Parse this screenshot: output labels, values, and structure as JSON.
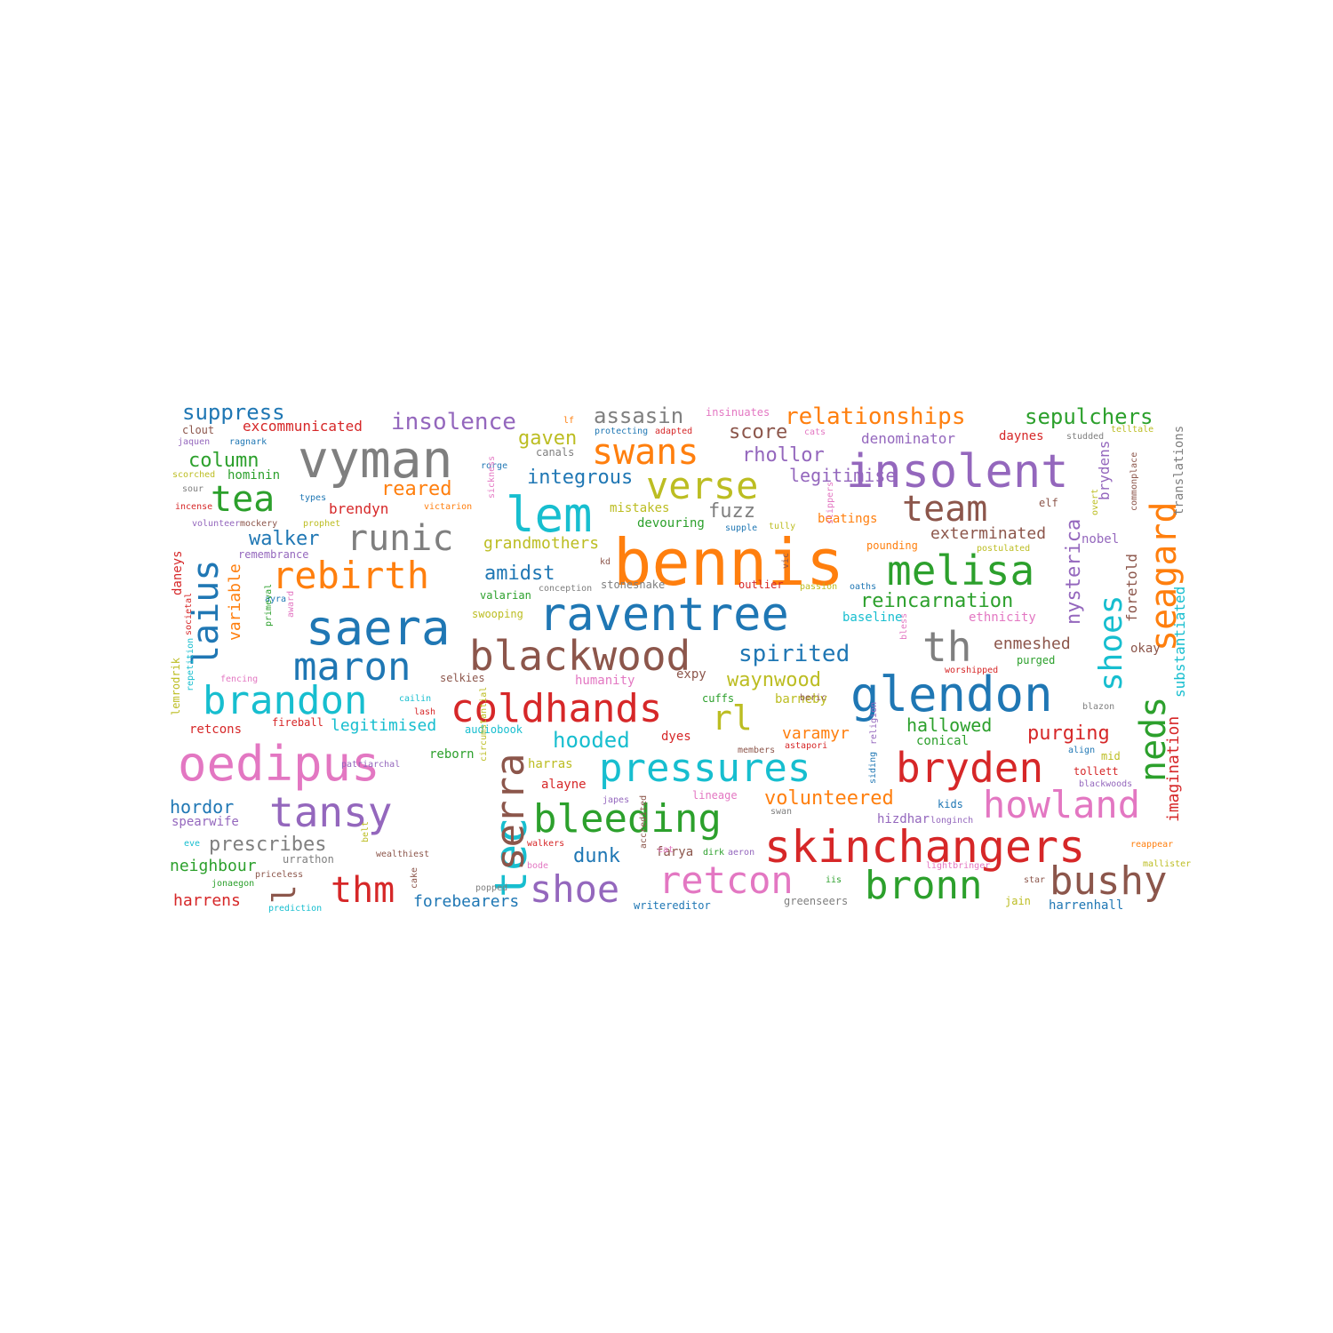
{
  "palette": {
    "blue": "#1f77b4",
    "orange": "#ff7f0e",
    "green": "#2ca02c",
    "red": "#d62728",
    "purple": "#9467bd",
    "brown": "#8c564b",
    "pink": "#e377c2",
    "gray": "#7f7f7f",
    "olive": "#bcbd22",
    "cyan": "#17becf"
  },
  "words": [
    {
      "text": "bennis",
      "color": "orange"
    },
    {
      "text": "vyman",
      "color": "gray"
    },
    {
      "text": "oedipus",
      "color": "pink"
    },
    {
      "text": "insolent",
      "color": "purple"
    },
    {
      "text": "raventree",
      "color": "blue"
    },
    {
      "text": "glendon",
      "color": "blue"
    },
    {
      "text": "skinchangers",
      "color": "red"
    },
    {
      "text": "blackwood",
      "color": "brown"
    },
    {
      "text": "saera",
      "color": "blue"
    },
    {
      "text": "tec",
      "color": "cyan"
    },
    {
      "text": "lem",
      "color": "cyan"
    },
    {
      "text": "pressures",
      "color": "cyan"
    },
    {
      "text": "coldhands",
      "color": "red"
    },
    {
      "text": "bleeding",
      "color": "green"
    },
    {
      "text": "bryden",
      "color": "red"
    },
    {
      "text": "melisa",
      "color": "green"
    },
    {
      "text": "maron",
      "color": "blue"
    },
    {
      "text": "brandon",
      "color": "cyan"
    },
    {
      "text": "tansy",
      "color": "purple"
    },
    {
      "text": "howland",
      "color": "pink"
    },
    {
      "text": "bushy",
      "color": "brown"
    },
    {
      "text": "bronn",
      "color": "green"
    },
    {
      "text": "retcon",
      "color": "pink"
    },
    {
      "text": "shoe",
      "color": "purple"
    },
    {
      "text": "serra",
      "color": "brown"
    },
    {
      "text": "seagard",
      "color": "orange"
    },
    {
      "text": "rebirth",
      "color": "orange"
    },
    {
      "text": "runic",
      "color": "gray"
    },
    {
      "text": "verse",
      "color": "olive"
    },
    {
      "text": "swans",
      "color": "orange"
    },
    {
      "text": "team",
      "color": "brown"
    },
    {
      "text": "tea",
      "color": "green"
    },
    {
      "text": "laius",
      "color": "blue"
    },
    {
      "text": "th",
      "color": "gray"
    },
    {
      "text": "neds",
      "color": "green"
    },
    {
      "text": "shoes",
      "color": "cyan"
    },
    {
      "text": "thm",
      "color": "red"
    },
    {
      "text": "l",
      "color": "brown"
    },
    {
      "text": "rl",
      "color": "olive"
    },
    {
      "text": "insolence",
      "color": "purple"
    },
    {
      "text": "relationships",
      "color": "orange"
    },
    {
      "text": "sepulchers",
      "color": "green"
    },
    {
      "text": "suppress",
      "color": "blue"
    },
    {
      "text": "assasin",
      "color": "gray"
    },
    {
      "text": "gaven",
      "color": "olive"
    },
    {
      "text": "score",
      "color": "brown"
    },
    {
      "text": "rhollor",
      "color": "purple"
    },
    {
      "text": "column",
      "color": "green"
    },
    {
      "text": "integrous",
      "color": "blue"
    },
    {
      "text": "reared",
      "color": "orange"
    },
    {
      "text": "fuzz",
      "color": "gray"
    },
    {
      "text": "legitimise",
      "color": "purple"
    },
    {
      "text": "walker",
      "color": "blue"
    },
    {
      "text": "grandmothers",
      "color": "olive"
    },
    {
      "text": "exterminated",
      "color": "brown"
    },
    {
      "text": "amidst",
      "color": "blue"
    },
    {
      "text": "reincarnation",
      "color": "green"
    },
    {
      "text": "spirited",
      "color": "blue"
    },
    {
      "text": "nysterica",
      "color": "purple"
    },
    {
      "text": "variable",
      "color": "orange"
    },
    {
      "text": "waynwood",
      "color": "olive"
    },
    {
      "text": "enmeshed",
      "color": "brown"
    },
    {
      "text": "hallowed",
      "color": "green"
    },
    {
      "text": "purging",
      "color": "red"
    },
    {
      "text": "hooded",
      "color": "cyan"
    },
    {
      "text": "varamyr",
      "color": "orange"
    },
    {
      "text": "legitimised",
      "color": "cyan"
    },
    {
      "text": "volunteered",
      "color": "orange"
    },
    {
      "text": "hordor",
      "color": "blue"
    },
    {
      "text": "prescribes",
      "color": "gray"
    },
    {
      "text": "dunk",
      "color": "blue"
    },
    {
      "text": "imagination",
      "color": "red"
    },
    {
      "text": "substantiated",
      "color": "cyan"
    },
    {
      "text": "foretold",
      "color": "brown"
    },
    {
      "text": "brydens",
      "color": "purple"
    },
    {
      "text": "translations",
      "color": "gray"
    },
    {
      "text": "excommunicated",
      "color": "red"
    },
    {
      "text": "denominator",
      "color": "purple"
    },
    {
      "text": "daynes",
      "color": "red"
    },
    {
      "text": "brendyn",
      "color": "red"
    },
    {
      "text": "hominin",
      "color": "green"
    },
    {
      "text": "mistakes",
      "color": "olive"
    },
    {
      "text": "devouring",
      "color": "green"
    },
    {
      "text": "beatings",
      "color": "orange"
    },
    {
      "text": "baseline",
      "color": "cyan"
    },
    {
      "text": "ethnicity",
      "color": "pink"
    },
    {
      "text": "purged",
      "color": "green"
    },
    {
      "text": "okay",
      "color": "brown"
    },
    {
      "text": "neighbour",
      "color": "green"
    },
    {
      "text": "harrens",
      "color": "red"
    },
    {
      "text": "forebearers",
      "color": "blue"
    },
    {
      "text": "harrenhall",
      "color": "blue"
    },
    {
      "text": "greenseers",
      "color": "gray"
    },
    {
      "text": "writereditor",
      "color": "blue"
    },
    {
      "text": "farya",
      "color": "brown"
    },
    {
      "text": "barneby",
      "color": "olive"
    },
    {
      "text": "retcons",
      "color": "red"
    },
    {
      "text": "daneys",
      "color": "red"
    },
    {
      "text": "lemrodrik",
      "color": "olive"
    },
    {
      "text": "humanity",
      "color": "pink"
    },
    {
      "text": "expy",
      "color": "brown"
    },
    {
      "text": "dyes",
      "color": "red"
    },
    {
      "text": "conical",
      "color": "green"
    },
    {
      "text": "mid",
      "color": "olive"
    },
    {
      "text": "kids",
      "color": "blue"
    },
    {
      "text": "hizdhar",
      "color": "purple"
    },
    {
      "text": "reborn",
      "color": "green"
    },
    {
      "text": "harras",
      "color": "olive"
    },
    {
      "text": "alayne",
      "color": "red"
    },
    {
      "text": "spearwife",
      "color": "purple"
    },
    {
      "text": "urrathon",
      "color": "gray"
    },
    {
      "text": "wealthiest",
      "color": "brown"
    },
    {
      "text": "jain",
      "color": "olive"
    },
    {
      "text": "stonesnake",
      "color": "gray"
    },
    {
      "text": "outlier",
      "color": "red"
    },
    {
      "text": "pounding",
      "color": "orange"
    },
    {
      "text": "nobel",
      "color": "purple"
    },
    {
      "text": "selkies",
      "color": "brown"
    },
    {
      "text": "fireball",
      "color": "red"
    },
    {
      "text": "audiobook",
      "color": "cyan"
    },
    {
      "text": "cuffs",
      "color": "green"
    },
    {
      "text": "astapori",
      "color": "red"
    },
    {
      "text": "tollett",
      "color": "red"
    },
    {
      "text": "clout",
      "color": "brown"
    },
    {
      "text": "jaquen",
      "color": "purple"
    },
    {
      "text": "ragnark",
      "color": "blue"
    },
    {
      "text": "canals",
      "color": "gray"
    },
    {
      "text": "elf",
      "color": "brown"
    },
    {
      "text": "valarian",
      "color": "green"
    },
    {
      "text": "swooping",
      "color": "olive"
    },
    {
      "text": "remembrance",
      "color": "purple"
    },
    {
      "text": "insinuates",
      "color": "pink"
    },
    {
      "text": "cats",
      "color": "pink"
    },
    {
      "text": "telltale",
      "color": "olive"
    },
    {
      "text": "studded",
      "color": "gray"
    },
    {
      "text": "protecting",
      "color": "blue"
    },
    {
      "text": "adapted",
      "color": "red"
    },
    {
      "text": "rorge",
      "color": "blue"
    },
    {
      "text": "scorched",
      "color": "olive"
    },
    {
      "text": "sour",
      "color": "gray"
    },
    {
      "text": "types",
      "color": "blue"
    },
    {
      "text": "incense",
      "color": "red"
    },
    {
      "text": "victarion",
      "color": "orange"
    },
    {
      "text": "volunteer",
      "color": "purple"
    },
    {
      "text": "mockery",
      "color": "brown"
    },
    {
      "text": "prophet",
      "color": "olive"
    },
    {
      "text": "supple",
      "color": "blue"
    },
    {
      "text": "tully",
      "color": "olive"
    },
    {
      "text": "postulated",
      "color": "olive"
    },
    {
      "text": "overt",
      "color": "olive"
    },
    {
      "text": "passion",
      "color": "olive"
    },
    {
      "text": "oaths",
      "color": "blue"
    },
    {
      "text": "conception",
      "color": "gray"
    },
    {
      "text": "kd",
      "color": "brown"
    },
    {
      "text": "worshipped",
      "color": "red"
    },
    {
      "text": "cailin",
      "color": "cyan"
    },
    {
      "text": "lash",
      "color": "red"
    },
    {
      "text": "ayra",
      "color": "blue"
    },
    {
      "text": "fencing",
      "color": "pink"
    },
    {
      "text": "blazon",
      "color": "gray"
    },
    {
      "text": "align",
      "color": "blue"
    },
    {
      "text": "blackwoods",
      "color": "purple"
    },
    {
      "text": "lineage",
      "color": "pink"
    },
    {
      "text": "members",
      "color": "brown"
    },
    {
      "text": "beric",
      "color": "brown"
    },
    {
      "text": "japes",
      "color": "purple"
    },
    {
      "text": "swan",
      "color": "gray"
    },
    {
      "text": "patriarchal",
      "color": "purple"
    },
    {
      "text": "eve",
      "color": "cyan"
    },
    {
      "text": "walkers",
      "color": "red"
    },
    {
      "text": "cat",
      "color": "pink"
    },
    {
      "text": "dirk",
      "color": "green"
    },
    {
      "text": "aeron",
      "color": "purple"
    },
    {
      "text": "longinch",
      "color": "purple"
    },
    {
      "text": "lightbringer",
      "color": "pink"
    },
    {
      "text": "reappear",
      "color": "orange"
    },
    {
      "text": "mallister",
      "color": "olive"
    },
    {
      "text": "star",
      "color": "brown"
    },
    {
      "text": "iis",
      "color": "green"
    },
    {
      "text": "jonaegon",
      "color": "green"
    },
    {
      "text": "priceless",
      "color": "brown"
    },
    {
      "text": "prediction",
      "color": "cyan"
    },
    {
      "text": "bode",
      "color": "pink"
    },
    {
      "text": "popped",
      "color": "gray"
    },
    {
      "text": "cake",
      "color": "brown"
    },
    {
      "text": "lf",
      "color": "orange"
    },
    {
      "text": "sickness",
      "color": "pink"
    },
    {
      "text": "slippers",
      "color": "pink"
    },
    {
      "text": "vic",
      "color": "brown"
    },
    {
      "text": "commonplace",
      "color": "brown"
    },
    {
      "text": "award",
      "color": "pink"
    },
    {
      "text": "primeval",
      "color": "green"
    },
    {
      "text": "societal",
      "color": "red"
    },
    {
      "text": "repetition",
      "color": "cyan"
    },
    {
      "text": "bless",
      "color": "pink"
    },
    {
      "text": "religion",
      "color": "purple"
    },
    {
      "text": "siding",
      "color": "blue"
    },
    {
      "text": "circumstantial",
      "color": "olive"
    },
    {
      "text": "belt",
      "color": "olive"
    },
    {
      "text": "accredited",
      "color": "brown"
    }
  ]
}
